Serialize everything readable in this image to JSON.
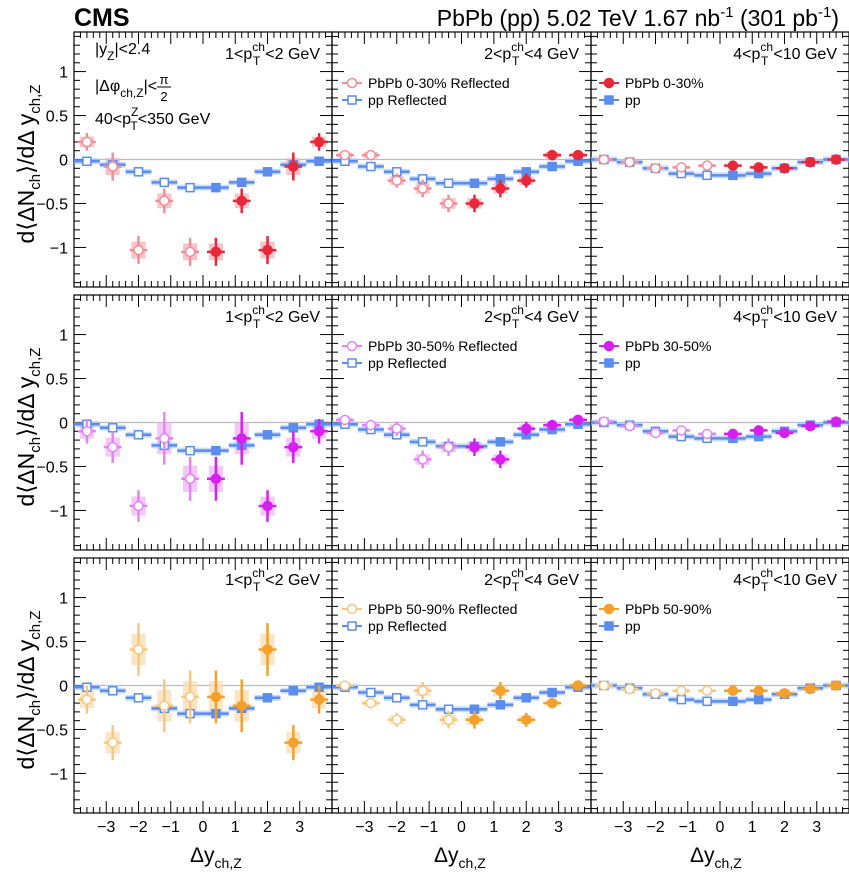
{
  "header": {
    "experiment": "CMS",
    "collision": "PbPb (pp) 5.02 TeV 1.67 nb",
    "lumi_pbpb_exp": "-1",
    "lumi_pp": " (301 pb",
    "lumi_pp_exp": "-1",
    "close_paren": ")"
  },
  "annotations": {
    "rapidity_cut": "|y",
    "rapidity_sub": "Z",
    "rapidity_val": "|<2.4",
    "dphi_pre": "|Δφ",
    "dphi_sub": "ch,Z",
    "dphi_val": "|<",
    "dphi_num": "π",
    "dphi_den": "2",
    "pt_pre": "40<p",
    "pt_sup": "Z",
    "pt_sub": "T",
    "pt_val": "<350 GeV"
  },
  "axis": {
    "ylabel": "d⟨ΔN",
    "ylabel_sub": "ch",
    "ylabel_mid": "⟩/dΔ y",
    "ylabel_sub2": "ch,Z",
    "xlabel": "Δy",
    "xlabel_sub": "ch,Z",
    "yticks": [
      "−1",
      "−0.5",
      "0",
      "0.5",
      "1"
    ],
    "xticks": [
      "−3",
      "−2",
      "−1",
      "0",
      "1",
      "2",
      "3"
    ]
  },
  "pt_bins": [
    {
      "lo": "1<p",
      "sup": "ch",
      "sub": "T",
      "hi": "<2 GeV"
    },
    {
      "lo": "2<p",
      "sup": "ch",
      "sub": "T",
      "hi": "<4 GeV"
    },
    {
      "lo": "4<p",
      "sup": "ch",
      "sub": "T",
      "hi": "<10 GeV"
    }
  ],
  "legends": [
    {
      "reflected": "PbPb 0-30% Reflected",
      "pp_reflected": "pp Reflected",
      "pbpb": "PbPb 0-30%",
      "pp": "pp"
    },
    {
      "reflected": "PbPb 30-50% Reflected",
      "pp_reflected": "pp Reflected",
      "pbpb": "PbPb 30-50%",
      "pp": "pp"
    },
    {
      "reflected": "PbPb 50-90% Reflected",
      "pp_reflected": "pp Reflected",
      "pbpb": "PbPb 50-90%",
      "pp": "pp"
    }
  ],
  "colors": {
    "pp": "#5b8def",
    "pp_band": "#a9c4f5",
    "rows": [
      "#e8283a",
      "#d71ff0",
      "#f5a02a"
    ],
    "rows_band": [
      "#f6b0b6",
      "#f0b5f8",
      "#fbdcb0"
    ],
    "rows_light": [
      "#f08f98",
      "#e585f4",
      "#f8c77e"
    ],
    "zero_line": "#bbbbbb"
  },
  "chart_data": {
    "type": "scatter",
    "x_range": [
      -4,
      4
    ],
    "y_range": [
      -1.45,
      1.45
    ],
    "x_bins": [
      -3.6,
      -2.8,
      -2.0,
      -1.2,
      -0.4,
      0.4,
      1.2,
      2.0,
      2.8,
      3.6
    ],
    "x_bin_half_width": 0.4,
    "pp_values": [
      [
        -0.02,
        -0.06,
        -0.14,
        -0.26,
        -0.32,
        -0.32,
        -0.26,
        -0.14,
        -0.06,
        -0.02
      ],
      [
        -0.02,
        -0.08,
        -0.14,
        -0.22,
        -0.27,
        -0.27,
        -0.22,
        -0.14,
        -0.08,
        -0.02
      ],
      [
        0.0,
        -0.03,
        -0.1,
        -0.16,
        -0.18,
        -0.18,
        -0.16,
        -0.1,
        -0.03,
        0.0
      ]
    ],
    "pp_values_alt": [
      [
        -0.03,
        -0.06,
        -0.15,
        -0.27,
        -0.33,
        -0.33,
        -0.27,
        -0.15,
        -0.06,
        -0.03
      ],
      [
        -0.03,
        -0.07,
        -0.14,
        -0.24,
        -0.29,
        -0.29,
        -0.24,
        -0.14,
        -0.07,
        -0.03
      ],
      [
        0.0,
        -0.03,
        -0.09,
        -0.16,
        -0.2,
        -0.2,
        -0.16,
        -0.09,
        -0.03,
        0.0
      ]
    ],
    "panels": [
      [
        {
          "pbpb": [
            0.2,
            -0.08,
            -1.03,
            -0.47,
            -1.05,
            -1.05,
            -0.47,
            -1.03,
            -0.08,
            0.2
          ],
          "err": [
            0.1,
            0.16,
            0.16,
            0.14,
            0.16,
            0.16,
            0.14,
            0.16,
            0.16,
            0.1
          ]
        },
        {
          "pbpb": [
            0.05,
            0.05,
            -0.24,
            -0.33,
            -0.5,
            -0.5,
            -0.33,
            -0.24,
            0.05,
            0.05
          ],
          "err": [
            0.05,
            0.06,
            0.08,
            0.1,
            0.1,
            0.1,
            0.1,
            0.08,
            0.06,
            0.05
          ]
        },
        {
          "pbpb": [
            0.0,
            -0.03,
            -0.1,
            -0.09,
            -0.07,
            -0.07,
            -0.09,
            -0.1,
            -0.03,
            0.0
          ],
          "err": [
            0.02,
            0.02,
            0.03,
            0.03,
            0.03,
            0.03,
            0.03,
            0.03,
            0.02,
            0.02
          ]
        }
      ],
      [
        {
          "pbpb": [
            -0.1,
            -0.28,
            -0.95,
            -0.18,
            -0.64,
            -0.64,
            -0.18,
            -0.95,
            -0.28,
            -0.1
          ],
          "err": [
            0.14,
            0.18,
            0.18,
            0.3,
            0.25,
            0.25,
            0.3,
            0.18,
            0.18,
            0.14
          ]
        },
        {
          "pbpb": [
            0.03,
            -0.03,
            -0.07,
            -0.42,
            -0.28,
            -0.28,
            -0.42,
            -0.07,
            -0.03,
            0.03
          ],
          "err": [
            0.05,
            0.06,
            0.08,
            0.1,
            0.1,
            0.1,
            0.1,
            0.08,
            0.06,
            0.05
          ]
        },
        {
          "pbpb": [
            0.01,
            -0.04,
            -0.12,
            -0.09,
            -0.13,
            -0.13,
            -0.09,
            -0.12,
            -0.04,
            0.01
          ],
          "err": [
            0.02,
            0.02,
            0.03,
            0.03,
            0.03,
            0.03,
            0.03,
            0.03,
            0.02,
            0.02
          ]
        }
      ],
      [
        {
          "pbpb": [
            -0.16,
            -0.65,
            0.41,
            -0.23,
            -0.13,
            -0.13,
            -0.23,
            0.41,
            -0.65,
            -0.16
          ],
          "err": [
            0.16,
            0.2,
            0.3,
            0.3,
            0.3,
            0.3,
            0.3,
            0.3,
            0.2,
            0.16
          ]
        },
        {
          "pbpb": [
            0.0,
            -0.2,
            -0.39,
            -0.06,
            -0.39,
            -0.39,
            -0.06,
            -0.39,
            -0.2,
            0.0
          ],
          "err": [
            0.04,
            0.06,
            0.08,
            0.1,
            0.1,
            0.1,
            0.1,
            0.08,
            0.06,
            0.04
          ]
        },
        {
          "pbpb": [
            0.0,
            -0.04,
            -0.09,
            -0.06,
            -0.06,
            -0.06,
            -0.06,
            -0.09,
            -0.04,
            0.0
          ],
          "err": [
            0.02,
            0.02,
            0.03,
            0.03,
            0.03,
            0.03,
            0.03,
            0.03,
            0.02,
            0.02
          ]
        }
      ]
    ]
  }
}
